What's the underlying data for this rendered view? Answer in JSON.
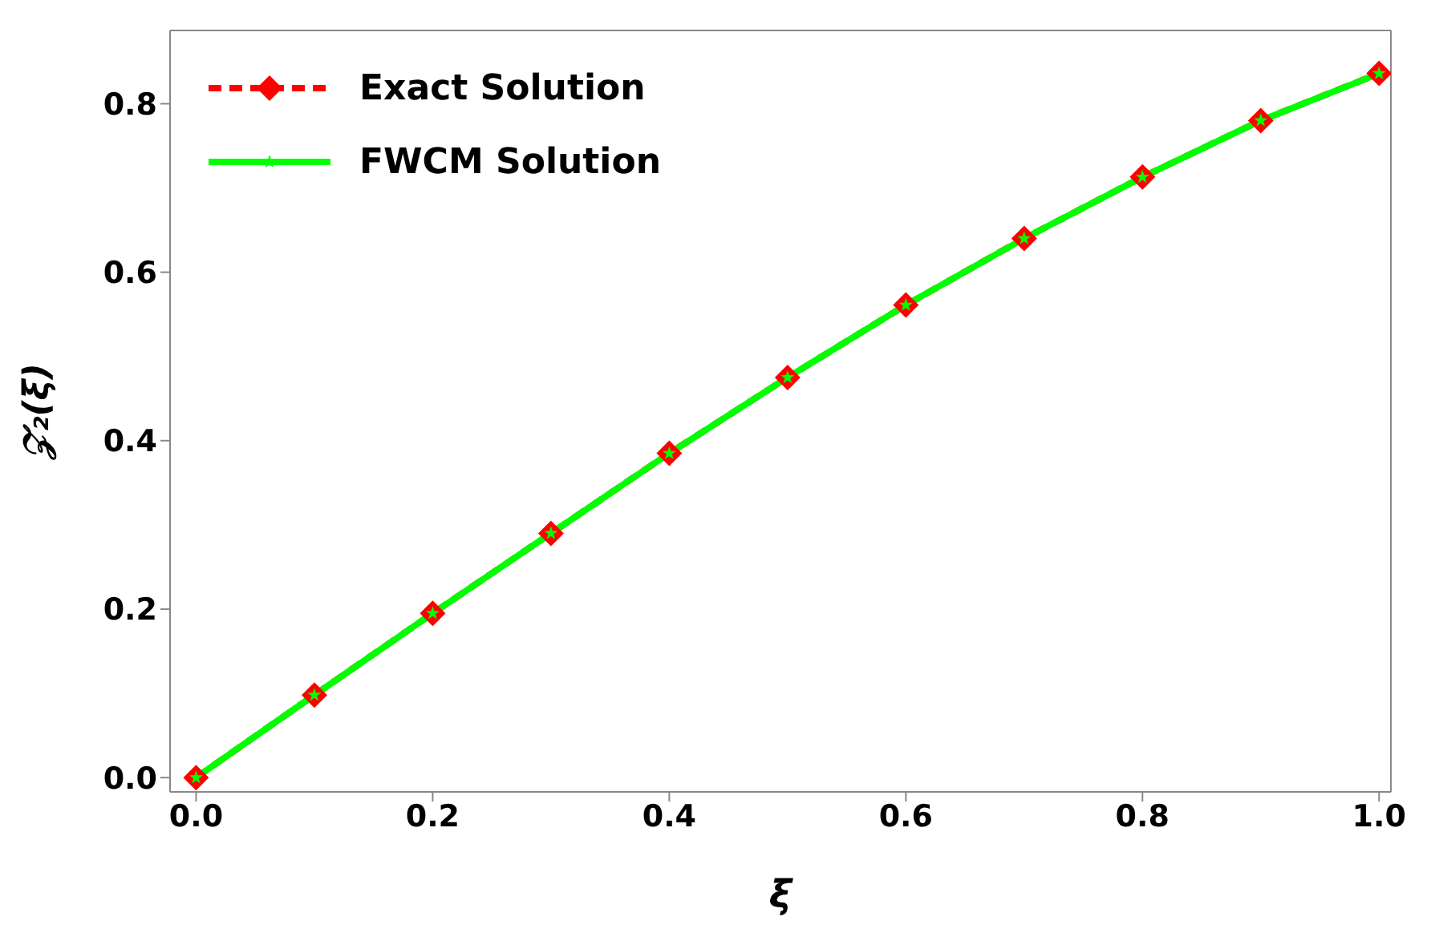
{
  "chart_data": {
    "type": "line",
    "xlabel": "ξ",
    "ylabel": "𝒵₂(ξ)",
    "x": [
      0,
      0.1,
      0.2,
      0.3,
      0.4,
      0.5,
      0.6,
      0.7,
      0.8,
      0.9,
      1.0
    ],
    "series": [
      {
        "name": "Exact Solution",
        "color": "#ff0000",
        "marker": "diamond",
        "line_style": "dashed",
        "values": [
          0,
          0.098,
          0.195,
          0.29,
          0.385,
          0.475,
          0.561,
          0.64,
          0.713,
          0.78,
          0.836
        ]
      },
      {
        "name": "FWCM Solution",
        "color": "#00ff00",
        "marker": "star",
        "line_style": "solid",
        "values": [
          0,
          0.098,
          0.195,
          0.29,
          0.385,
          0.475,
          0.561,
          0.64,
          0.713,
          0.78,
          0.836
        ]
      }
    ],
    "xlim": [
      -0.022,
      1.01
    ],
    "xticks": [
      {
        "value": 0,
        "label": "0.0"
      },
      0.2,
      0.4,
      0.6,
      0.8,
      {
        "value": 1,
        "label": "1.0"
      }
    ],
    "ylim": [
      -0.017,
      0.887
    ],
    "yticks": [
      {
        "value": 0,
        "label": "0.0"
      },
      0.2,
      0.4,
      0.6,
      0.8
    ],
    "legend": "top left"
  }
}
